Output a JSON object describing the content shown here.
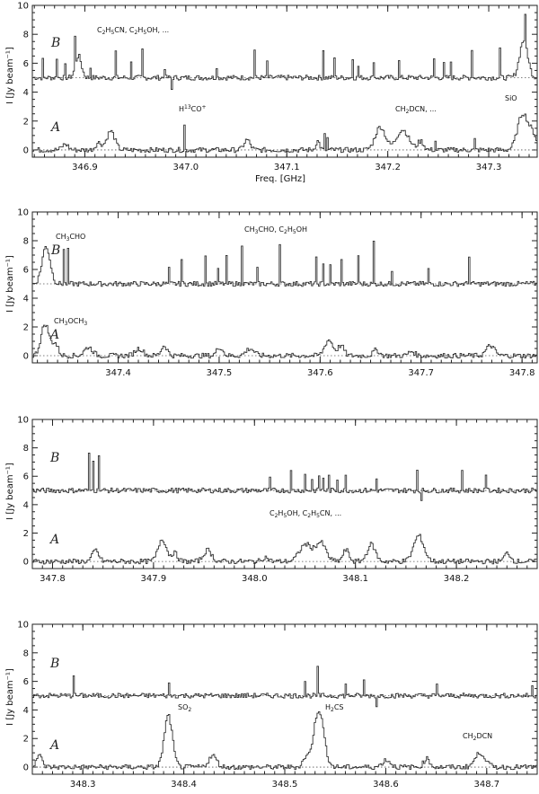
{
  "chart_data": [
    {
      "type": "line",
      "xlim": [
        346.848,
        347.348
      ],
      "ylim": [
        -0.5,
        10
      ],
      "xticks": [
        346.9,
        347.0,
        347.1,
        347.2,
        347.3
      ],
      "xtick_labels": [
        "346.9",
        "347.0",
        "347.1",
        "347.2",
        "347.3"
      ],
      "yticks": [
        0,
        2,
        4,
        6,
        8,
        10
      ],
      "ylabel": "I [Jy beam⁻¹]",
      "xlabel": "Freq. [GHz]",
      "series": [
        {
          "name": "B",
          "baseline": 5,
          "lines": [
            [
              346.858,
              1.2
            ],
            [
              346.872,
              1.4
            ],
            [
              346.88,
              0.8
            ],
            [
              346.89,
              2.0
            ],
            [
              346.905,
              0.7
            ],
            [
              346.93,
              1.8
            ],
            [
              346.945,
              1.0
            ],
            [
              346.957,
              1.9
            ],
            [
              346.978,
              0.7
            ],
            [
              346.985,
              -0.8
            ],
            [
              347.03,
              0.8
            ],
            [
              347.067,
              1.9
            ],
            [
              347.08,
              1.1
            ],
            [
              347.135,
              1.9
            ],
            [
              347.146,
              1.4
            ],
            [
              347.165,
              1.3
            ],
            [
              347.17,
              0.8
            ],
            [
              347.185,
              1.2
            ],
            [
              347.21,
              1.1
            ],
            [
              347.245,
              1.3
            ],
            [
              347.255,
              0.9
            ],
            [
              347.262,
              1.1
            ],
            [
              347.283,
              2.0
            ],
            [
              347.31,
              2.0
            ],
            [
              347.335,
              1.8
            ]
          ],
          "features": [
            [
              346.893,
              1.5,
              0.003
            ],
            [
              347.334,
              2.6,
              0.004
            ]
          ]
        },
        {
          "name": "A",
          "baseline": 0,
          "lines": [
            [
              346.998,
              1.7
            ],
            [
              347.137,
              1.0
            ],
            [
              347.14,
              0.8
            ],
            [
              347.285,
              0.7
            ],
            [
              347.247,
              0.6
            ]
          ],
          "features": [
            [
              346.925,
              1.3,
              0.004
            ],
            [
              346.913,
              0.5,
              0.003
            ],
            [
              346.88,
              0.4,
              0.003
            ],
            [
              347.06,
              0.7,
              0.003
            ],
            [
              347.13,
              0.6,
              0.002
            ],
            [
              347.192,
              1.6,
              0.005
            ],
            [
              347.214,
              1.4,
              0.006
            ],
            [
              347.232,
              0.6,
              0.003
            ],
            [
              347.333,
              2.5,
              0.005
            ],
            [
              347.343,
              1.0,
              0.004
            ]
          ]
        }
      ],
      "labels": {
        "B": "B",
        "A": "A",
        "b_mols": "C2H5CN, C2H5OH, ...",
        "h13co": "H13CO+",
        "ch2dcn": "CH2DCN, ...",
        "sio": "SiO"
      }
    },
    {
      "type": "line",
      "xlim": [
        347.315,
        347.815
      ],
      "ylim": [
        -0.5,
        10
      ],
      "xticks": [
        347.4,
        347.5,
        347.6,
        347.7,
        347.8
      ],
      "xtick_labels": [
        "347.4",
        "347.5",
        "347.6",
        "347.7",
        "347.8"
      ],
      "yticks": [
        0,
        2,
        4,
        6,
        8,
        10
      ],
      "ylabel": "I [Jy beam⁻¹]",
      "series": [
        {
          "name": "B",
          "baseline": 5,
          "lines": [
            [
              347.345,
              2.4
            ],
            [
              347.35,
              2.3
            ],
            [
              347.45,
              1.0
            ],
            [
              347.462,
              1.7
            ],
            [
              347.486,
              2.0
            ],
            [
              347.498,
              1.0
            ],
            [
              347.507,
              1.8
            ],
            [
              347.522,
              2.8
            ],
            [
              347.537,
              1.0
            ],
            [
              347.56,
              2.7
            ],
            [
              347.595,
              1.7
            ],
            [
              347.603,
              1.3
            ],
            [
              347.61,
              1.2
            ],
            [
              347.62,
              1.6
            ],
            [
              347.637,
              2.0
            ],
            [
              347.652,
              2.9
            ],
            [
              347.67,
              1.0
            ],
            [
              347.707,
              1.0
            ],
            [
              347.747,
              2.0
            ]
          ],
          "features": [
            [
              347.328,
              2.6,
              0.004
            ]
          ]
        },
        {
          "name": "A",
          "baseline": 0,
          "lines": [],
          "features": [
            [
              347.327,
              2.2,
              0.004
            ],
            [
              347.337,
              0.8,
              0.003
            ],
            [
              347.37,
              0.6,
              0.004
            ],
            [
              347.42,
              0.5,
              0.004
            ],
            [
              347.445,
              0.7,
              0.003
            ],
            [
              347.5,
              0.6,
              0.003
            ],
            [
              347.53,
              0.5,
              0.004
            ],
            [
              347.608,
              1.1,
              0.004
            ],
            [
              347.62,
              0.7,
              0.003
            ],
            [
              347.655,
              0.4,
              0.003
            ],
            [
              347.69,
              0.3,
              0.003
            ],
            [
              347.768,
              0.7,
              0.004
            ]
          ]
        }
      ],
      "labels": {
        "B": "B",
        "A": "A",
        "ch3cho": "CH3CHO",
        "b_mols": "CH3CHO, C2H5OH",
        "ch3och3": "CH3OCH3"
      }
    },
    {
      "type": "line",
      "xlim": [
        347.78,
        348.28
      ],
      "ylim": [
        -0.5,
        10
      ],
      "xticks": [
        347.8,
        347.9,
        348.0,
        348.1,
        348.2
      ],
      "xtick_labels": [
        "347.8",
        "347.9",
        "348.0",
        "348.1",
        "348.2"
      ],
      "yticks": [
        0,
        2,
        4,
        6,
        8,
        10
      ],
      "ylabel": "I [Jy beam⁻¹]",
      "series": [
        {
          "name": "B",
          "baseline": 5,
          "lines": [
            [
              347.835,
              2.5
            ],
            [
              347.84,
              2.2
            ],
            [
              347.845,
              2.6
            ],
            [
              348.015,
              0.8
            ],
            [
              348.035,
              1.3
            ],
            [
              348.05,
              1.1
            ],
            [
              348.056,
              0.8
            ],
            [
              348.063,
              1.1
            ],
            [
              348.067,
              0.9
            ],
            [
              348.073,
              1.0
            ],
            [
              348.082,
              0.8
            ],
            [
              348.09,
              1.0
            ],
            [
              348.12,
              0.8
            ],
            [
              348.16,
              1.5
            ],
            [
              348.165,
              -0.8
            ],
            [
              348.205,
              1.4
            ],
            [
              348.228,
              1.2
            ]
          ],
          "features": []
        },
        {
          "name": "A",
          "baseline": 0,
          "lines": [],
          "features": [
            [
              347.842,
              0.8,
              0.003
            ],
            [
              347.908,
              1.6,
              0.004
            ],
            [
              347.92,
              0.6,
              0.003
            ],
            [
              347.953,
              0.8,
              0.004
            ],
            [
              348.01,
              0.3,
              0.003
            ],
            [
              348.05,
              1.2,
              0.006
            ],
            [
              348.065,
              1.3,
              0.005
            ],
            [
              348.09,
              0.8,
              0.003
            ],
            [
              348.115,
              1.2,
              0.004
            ],
            [
              348.162,
              1.8,
              0.005
            ],
            [
              348.25,
              0.6,
              0.003
            ]
          ]
        }
      ],
      "labels": {
        "B": "B",
        "A": "A",
        "mols": "C2H5OH, C2H5CN, ..."
      }
    },
    {
      "type": "line",
      "xlim": [
        348.25,
        348.75
      ],
      "ylim": [
        -0.5,
        10
      ],
      "xticks": [
        348.3,
        348.4,
        348.5,
        348.6,
        348.7
      ],
      "xtick_labels": [
        "348.3",
        "348.4",
        "348.5",
        "348.6",
        "348.7"
      ],
      "yticks": [
        0,
        2,
        4,
        6,
        8,
        10
      ],
      "ylabel": "I [Jy beam⁻¹]",
      "series": [
        {
          "name": "B",
          "baseline": 5,
          "lines": [
            [
              348.29,
              1.5
            ],
            [
              348.385,
              0.8
            ],
            [
              348.532,
              1.9
            ],
            [
              348.52,
              1.0
            ],
            [
              348.56,
              0.8
            ],
            [
              348.578,
              1.0
            ],
            [
              348.59,
              -0.8
            ],
            [
              348.65,
              0.7
            ],
            [
              348.745,
              0.6
            ]
          ],
          "features": []
        },
        {
          "name": "A",
          "baseline": 0,
          "lines": [],
          "features": [
            [
              348.256,
              0.8,
              0.003
            ],
            [
              348.384,
              3.6,
              0.004
            ],
            [
              348.428,
              0.8,
              0.004
            ],
            [
              348.52,
              0.6,
              0.003
            ],
            [
              348.533,
              4.0,
              0.005
            ],
            [
              348.6,
              0.5,
              0.004
            ],
            [
              348.64,
              0.6,
              0.003
            ],
            [
              348.693,
              1.0,
              0.005
            ]
          ]
        }
      ],
      "labels": {
        "B": "B",
        "A": "A",
        "so2": "SO2",
        "h2cs": "H2CS",
        "ch2dcn": "CH2DCN"
      }
    }
  ]
}
